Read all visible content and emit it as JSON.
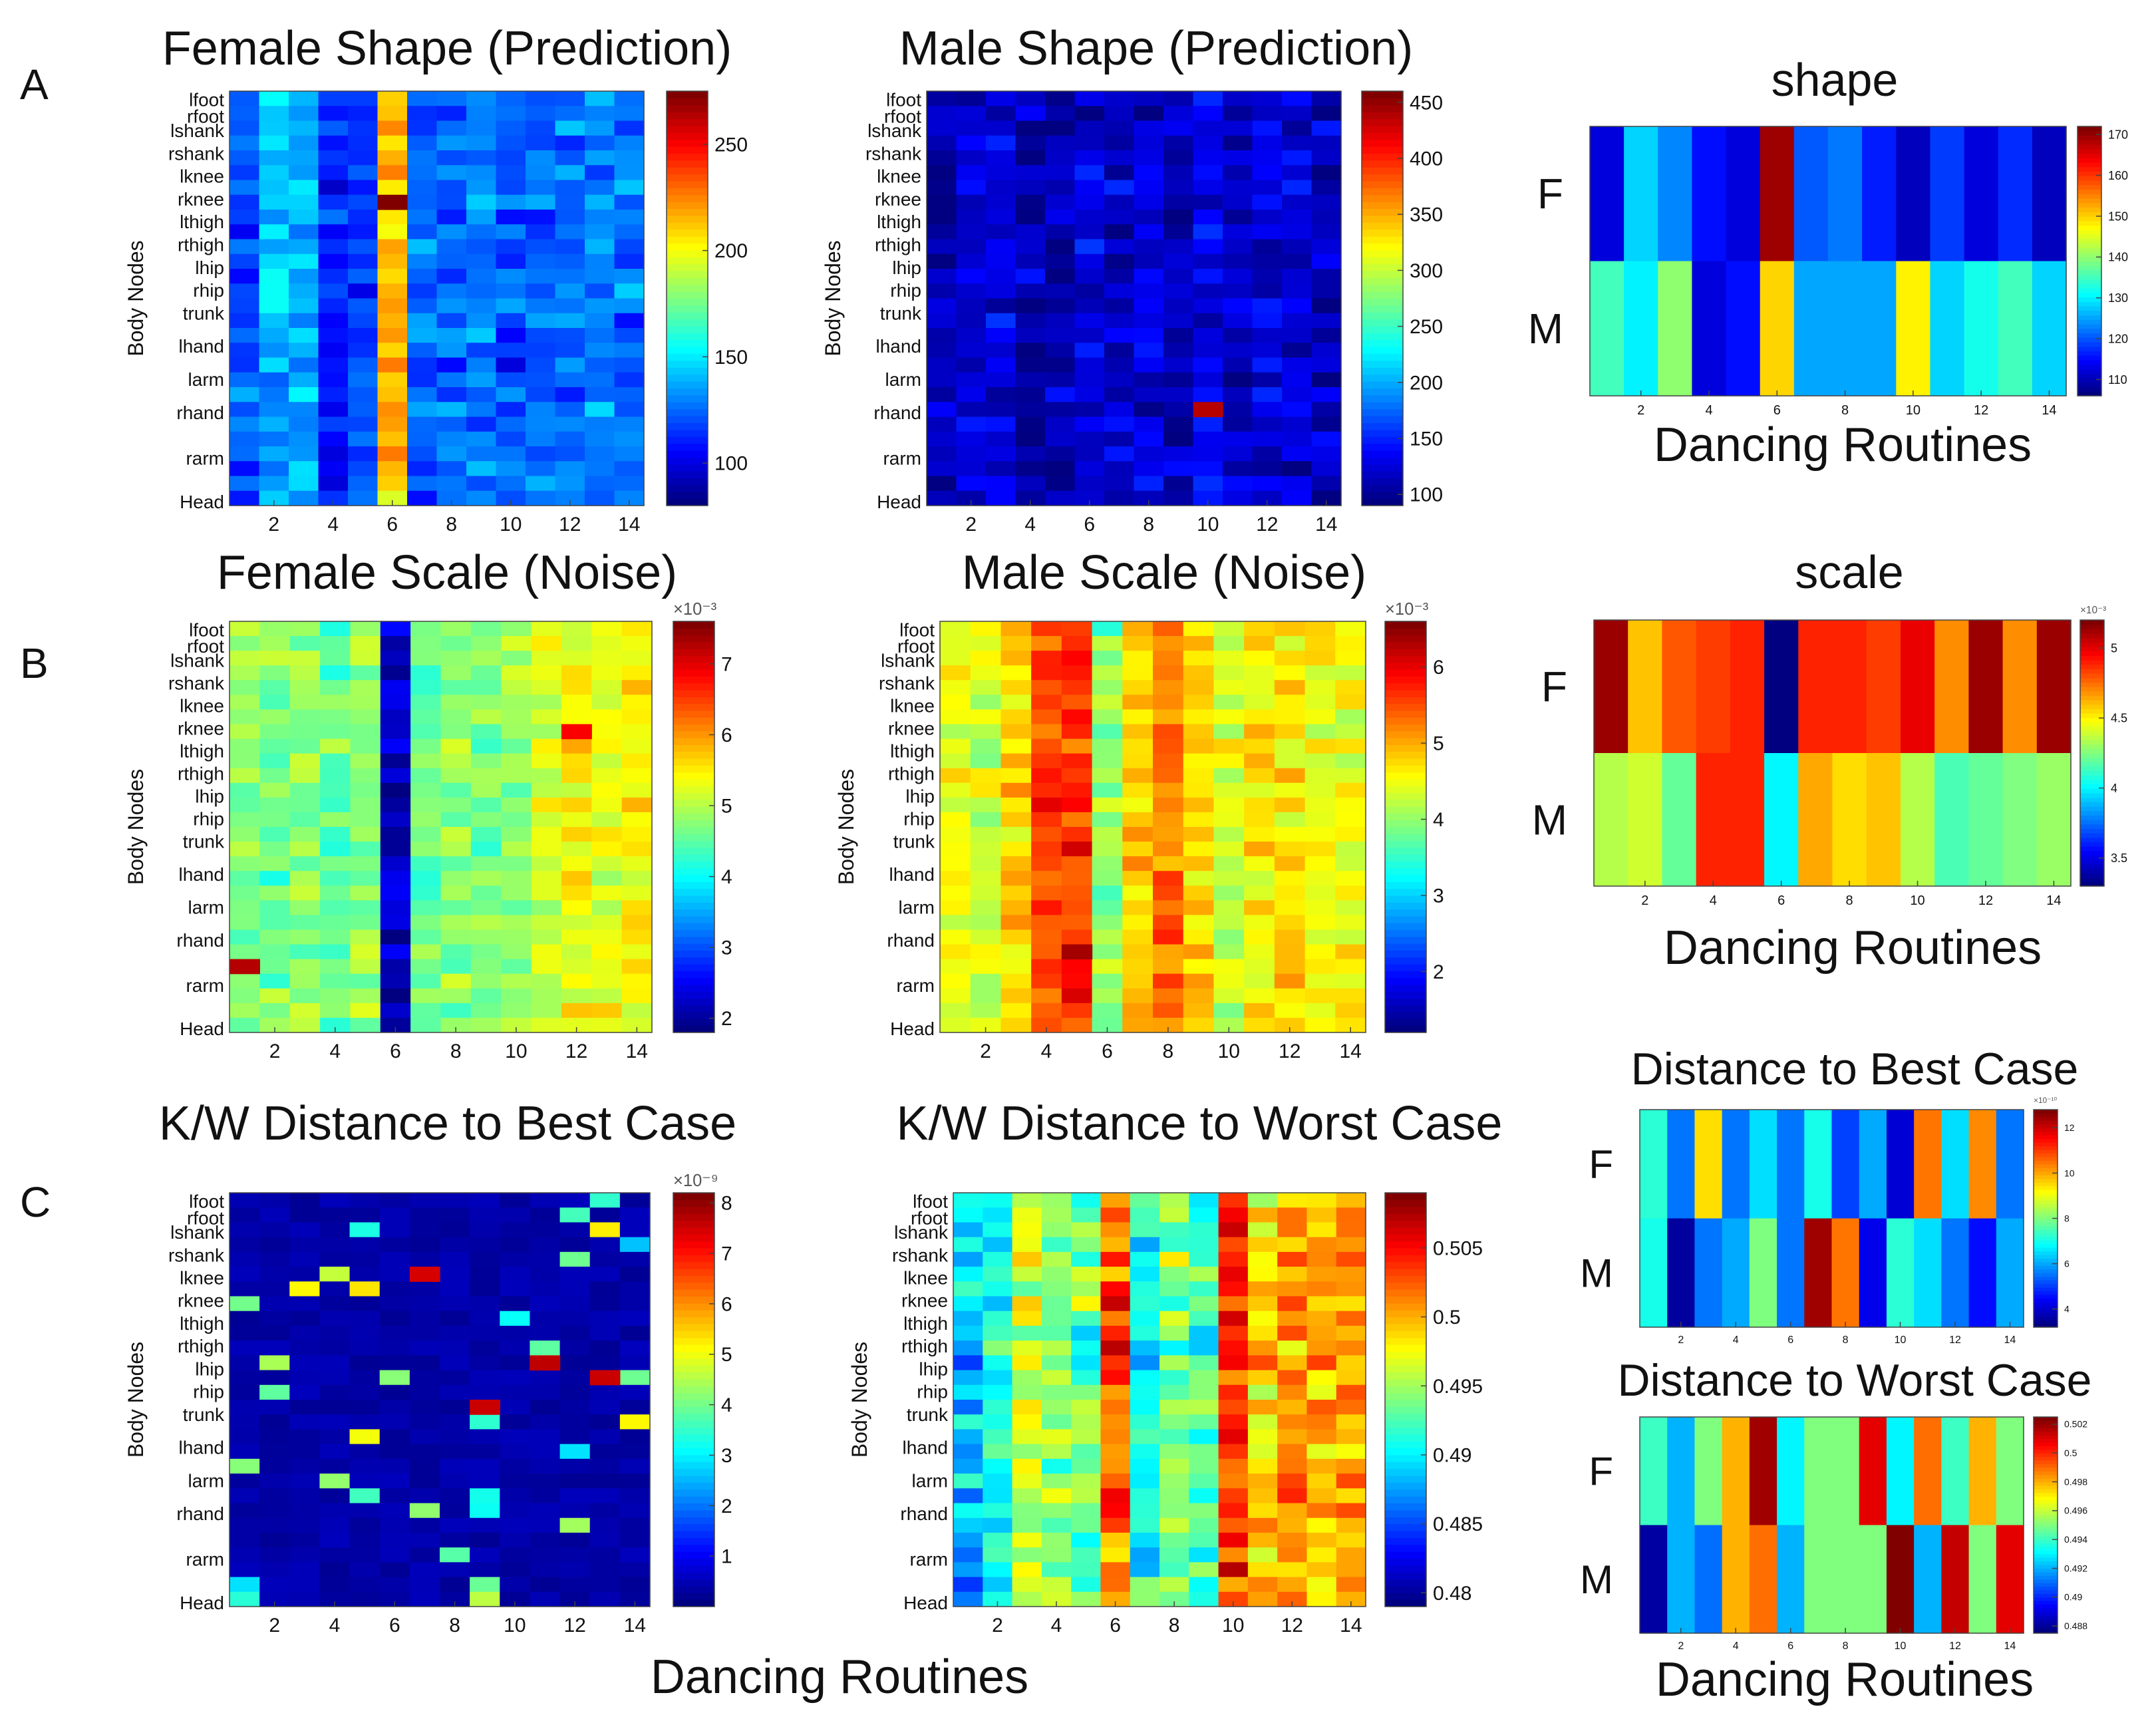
{
  "figure": {
    "row_labels": [
      "A",
      "B",
      "C"
    ],
    "bottom_xlabel_left": "Dancing Routines",
    "bottom_xlabel_right": "Dancing Routines"
  },
  "body_nodes_label": "Body Nodes",
  "chart_data": [
    {
      "id": "A-female",
      "type": "heatmap",
      "title": "Female Shape (Prediction)",
      "ylabel": "Body Nodes",
      "xlabel": "",
      "x": [
        1,
        2,
        3,
        4,
        5,
        6,
        7,
        8,
        9,
        10,
        11,
        12,
        13,
        14
      ],
      "x_ticks": [
        "2",
        "4",
        "6",
        "8",
        "10",
        "12",
        "14"
      ],
      "y_ticks": [
        "lfoot",
        "rfoot",
        "lshank",
        "rshank",
        "lknee",
        "rknee",
        "lthigh",
        "rthigh",
        "lhip",
        "rhip",
        "trunk",
        "lhand",
        "larm",
        "rhand",
        "rarm",
        "Head"
      ],
      "colorbar_ticks": [
        "100",
        "150",
        "200",
        "250"
      ],
      "colorbar_range": [
        80,
        275
      ],
      "colormap": "jet",
      "column_means": [
        120,
        140,
        135,
        110,
        115,
        215,
        120,
        125,
        130,
        120,
        125,
        125,
        130,
        125
      ],
      "hot_cells": [
        {
          "x": 6,
          "value": 275
        }
      ]
    },
    {
      "id": "A-male",
      "type": "heatmap",
      "title": "Male Shape (Prediction)",
      "ylabel": "Body Nodes",
      "xlabel": "",
      "x": [
        1,
        2,
        3,
        4,
        5,
        6,
        7,
        8,
        9,
        10,
        11,
        12,
        13,
        14
      ],
      "x_ticks": [
        "2",
        "4",
        "6",
        "8",
        "10",
        "12",
        "14"
      ],
      "y_ticks": [
        "lfoot",
        "rfoot",
        "lshank",
        "rshank",
        "lknee",
        "rknee",
        "lthigh",
        "rthigh",
        "lhip",
        "rhip",
        "trunk",
        "lhand",
        "larm",
        "rhand",
        "rarm",
        "Head"
      ],
      "colorbar_ticks": [
        "100",
        "150",
        "200",
        "250",
        "300",
        "350",
        "400",
        "450"
      ],
      "colorbar_range": [
        90,
        460
      ],
      "colormap": "jet",
      "column_means": [
        110,
        115,
        120,
        105,
        110,
        125,
        115,
        120,
        115,
        130,
        115,
        120,
        120,
        115
      ],
      "hot_cells": [
        {
          "x": 10,
          "value": 440
        }
      ]
    },
    {
      "id": "A-summary",
      "type": "heatmap",
      "title": "shape",
      "xlabel": "Dancing Routines",
      "x": [
        1,
        2,
        3,
        4,
        5,
        6,
        7,
        8,
        9,
        10,
        11,
        12,
        13,
        14
      ],
      "x_ticks": [
        "2",
        "4",
        "6",
        "8",
        "10",
        "12",
        "14"
      ],
      "rows": [
        "F",
        "M"
      ],
      "colorbar_ticks": [
        "110",
        "120",
        "130",
        "140",
        "150",
        "160",
        "170"
      ],
      "colorbar_range": [
        106,
        172
      ],
      "colormap": "jet",
      "values": [
        [
          112,
          128,
          123,
          115,
          112,
          170,
          120,
          122,
          116,
          110,
          118,
          112,
          117,
          110
        ],
        [
          135,
          130,
          140,
          112,
          115,
          150,
          125,
          125,
          125,
          148,
          128,
          132,
          135,
          128
        ]
      ]
    },
    {
      "id": "B-female",
      "type": "heatmap",
      "title": "Female Scale (Noise)",
      "ylabel": "Body Nodes",
      "xlabel": "",
      "x": [
        1,
        2,
        3,
        4,
        5,
        6,
        7,
        8,
        9,
        10,
        11,
        12,
        13,
        14
      ],
      "x_ticks": [
        "2",
        "4",
        "6",
        "8",
        "10",
        "12",
        "14"
      ],
      "y_ticks": [
        "lfoot",
        "rfoot",
        "lshank",
        "rshank",
        "lknee",
        "rknee",
        "lthigh",
        "rthigh",
        "lhip",
        "rhip",
        "trunk",
        "lhand",
        "larm",
        "rhand",
        "rarm",
        "Head"
      ],
      "colorbar_ticks": [
        "2",
        "3",
        "4",
        "5",
        "6",
        "7"
      ],
      "colorbar_exponent": "×10⁻³",
      "colorbar_range": [
        1.8,
        7.6
      ],
      "colormap": "jet",
      "column_means": [
        4.8,
        4.6,
        4.7,
        4.5,
        4.8,
        2.2,
        4.6,
        4.7,
        4.6,
        4.8,
        5.2,
        5.4,
        5.3,
        5.4
      ],
      "hot_cells": [
        {
          "x": 1,
          "value": 7.3
        },
        {
          "x": 12,
          "value": 6.9
        }
      ]
    },
    {
      "id": "B-male",
      "type": "heatmap",
      "title": "Male Scale (Noise)",
      "ylabel": "Body Nodes",
      "xlabel": "",
      "x": [
        1,
        2,
        3,
        4,
        5,
        6,
        7,
        8,
        9,
        10,
        11,
        12,
        13,
        14
      ],
      "x_ticks": [
        "2",
        "4",
        "6",
        "8",
        "10",
        "12",
        "14"
      ],
      "y_ticks": [
        "lfoot",
        "rfoot",
        "lshank",
        "rshank",
        "lknee",
        "rknee",
        "lthigh",
        "rthigh",
        "lhip",
        "rhip",
        "trunk",
        "lhand",
        "larm",
        "rhand",
        "rarm",
        "Head"
      ],
      "colorbar_ticks": [
        "2",
        "3",
        "4",
        "5",
        "6"
      ],
      "colorbar_exponent": "×10⁻³",
      "colorbar_range": [
        1.2,
        6.6
      ],
      "colormap": "jet",
      "column_means": [
        4.5,
        4.3,
        4.8,
        5.6,
        5.7,
        4.0,
        4.9,
        5.3,
        4.8,
        4.3,
        4.6,
        4.7,
        4.6,
        4.5
      ],
      "hot_cells": [
        {
          "x": 5,
          "value": 6.4
        }
      ]
    },
    {
      "id": "B-summary",
      "type": "heatmap",
      "title": "scale",
      "xlabel": "Dancing Routines",
      "x": [
        1,
        2,
        3,
        4,
        5,
        6,
        7,
        8,
        9,
        10,
        11,
        12,
        13,
        14
      ],
      "x_ticks": [
        "2",
        "4",
        "6",
        "8",
        "10",
        "12",
        "14"
      ],
      "rows": [
        "F",
        "M"
      ],
      "colorbar_ticks": [
        "3.5",
        "4",
        "4.5",
        "5"
      ],
      "colorbar_exponent": "×10⁻³",
      "colorbar_range": [
        3.3,
        5.2
      ],
      "colormap": "jet",
      "values": [
        [
          5.15,
          4.6,
          4.8,
          4.85,
          4.9,
          3.3,
          4.9,
          4.9,
          4.85,
          5.0,
          4.7,
          5.15,
          4.7,
          5.15
        ],
        [
          4.35,
          4.4,
          4.2,
          4.9,
          4.9,
          4.0,
          4.65,
          4.55,
          4.6,
          4.35,
          4.15,
          4.2,
          4.25,
          4.3
        ]
      ]
    },
    {
      "id": "C-best",
      "type": "heatmap",
      "title": "K/W Distance to Best Case",
      "ylabel": "Body Nodes",
      "xlabel": "",
      "x": [
        1,
        2,
        3,
        4,
        5,
        6,
        7,
        8,
        9,
        10,
        11,
        12,
        13,
        14
      ],
      "x_ticks": [
        "2",
        "4",
        "6",
        "8",
        "10",
        "12",
        "14"
      ],
      "y_ticks": [
        "lfoot",
        "rfoot",
        "lshank",
        "rshank",
        "lknee",
        "rknee",
        "lthigh",
        "rthigh",
        "lhip",
        "rhip",
        "trunk",
        "lhand",
        "larm",
        "rhand",
        "rarm",
        "Head"
      ],
      "colorbar_ticks": [
        "1",
        "2",
        "3",
        "4",
        "5",
        "6",
        "7",
        "8"
      ],
      "colorbar_exponent": "×10⁻⁹",
      "colorbar_range": [
        0,
        8.2
      ],
      "colormap": "jet",
      "hot_cells": [
        {
          "x": 7,
          "value": 7.5
        },
        {
          "x": 9,
          "value": 7.6
        },
        {
          "x": 11,
          "value": 7.7
        },
        {
          "x": 13,
          "value": 7.6
        }
      ]
    },
    {
      "id": "C-worst",
      "type": "heatmap",
      "title": "K/W Distance to Worst Case",
      "ylabel": "Body Nodes",
      "xlabel": "",
      "x": [
        1,
        2,
        3,
        4,
        5,
        6,
        7,
        8,
        9,
        10,
        11,
        12,
        13,
        14
      ],
      "x_ticks": [
        "2",
        "4",
        "6",
        "8",
        "10",
        "12",
        "14"
      ],
      "y_ticks": [
        "lfoot",
        "rfoot",
        "lshank",
        "rshank",
        "lknee",
        "rknee",
        "lthigh",
        "rthigh",
        "lhip",
        "rhip",
        "trunk",
        "lhand",
        "larm",
        "rhand",
        "rarm",
        "Head"
      ],
      "colorbar_ticks": [
        "0.48",
        "0.485",
        "0.49",
        "0.495",
        "0.5",
        "0.505"
      ],
      "colorbar_range": [
        0.479,
        0.509
      ],
      "colormap": "jet",
      "column_means": [
        0.488,
        0.491,
        0.497,
        0.494,
        0.493,
        0.503,
        0.491,
        0.494,
        0.492,
        0.504,
        0.499,
        0.501,
        0.5,
        0.501
      ]
    },
    {
      "id": "C-best-summary",
      "type": "heatmap",
      "title": "Distance to Best Case",
      "xlabel": "",
      "x": [
        1,
        2,
        3,
        4,
        5,
        6,
        7,
        8,
        9,
        10,
        11,
        12,
        13,
        14
      ],
      "x_ticks": [
        "2",
        "4",
        "6",
        "8",
        "10",
        "12",
        "14"
      ],
      "rows": [
        "F",
        "M"
      ],
      "colorbar_ticks": [
        "4",
        "6",
        "8",
        "10",
        "12"
      ],
      "colorbar_exponent": "×10⁻¹⁰",
      "colorbar_range": [
        3.2,
        12.8
      ],
      "colormap": "jet",
      "values": [
        [
          7.2,
          5.5,
          9.5,
          5.5,
          6.5,
          5.5,
          7.0,
          5.0,
          6.0,
          4.0,
          10.5,
          6.5,
          10.3,
          5.5
        ],
        [
          7.0,
          3.5,
          5.5,
          6.0,
          8.0,
          5.5,
          12.5,
          10.5,
          4.2,
          7.2,
          6.5,
          5.5,
          4.5,
          6.0
        ]
      ]
    },
    {
      "id": "C-worst-summary",
      "type": "heatmap",
      "title": "Distance to Worst Case",
      "xlabel": "Dancing Routines",
      "x": [
        1,
        2,
        3,
        4,
        5,
        6,
        7,
        8,
        9,
        10,
        11,
        12,
        13,
        14
      ],
      "x_ticks": [
        "2",
        "4",
        "6",
        "8",
        "10",
        "12",
        "14"
      ],
      "rows": [
        "F",
        "M"
      ],
      "colorbar_ticks": [
        "0.488",
        "0.49",
        "0.492",
        "0.494",
        "0.496",
        "0.498",
        "0.5",
        "0.502"
      ],
      "colorbar_range": [
        0.4875,
        0.5025
      ],
      "colormap": "jet",
      "values": [
        [
          0.494,
          0.492,
          0.495,
          0.498,
          0.502,
          0.493,
          0.495,
          0.495,
          0.501,
          0.493,
          0.499,
          0.494,
          0.498,
          0.495
        ],
        [
          0.488,
          0.492,
          0.491,
          0.498,
          0.499,
          0.492,
          0.495,
          0.495,
          0.495,
          0.5025,
          0.492,
          0.5015,
          0.495,
          0.501
        ]
      ]
    }
  ]
}
